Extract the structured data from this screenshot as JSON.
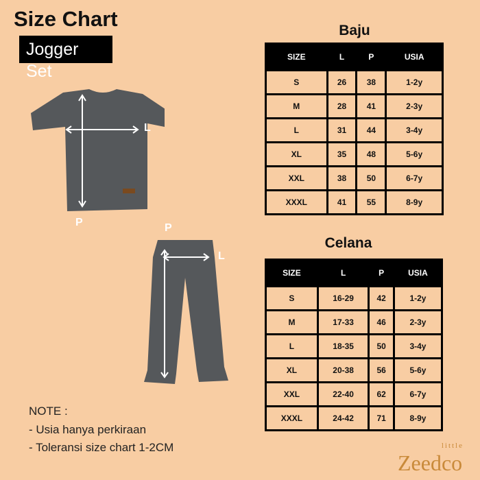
{
  "title": "Size Chart",
  "subtitle": "Jogger Set",
  "baju": {
    "title": "Baju",
    "headers": [
      "SIZE",
      "L",
      "P",
      "USIA"
    ],
    "rows": [
      [
        "S",
        "26",
        "38",
        "1-2y"
      ],
      [
        "M",
        "28",
        "41",
        "2-3y"
      ],
      [
        "L",
        "31",
        "44",
        "3-4y"
      ],
      [
        "XL",
        "35",
        "48",
        "5-6y"
      ],
      [
        "XXL",
        "38",
        "50",
        "6-7y"
      ],
      [
        "XXXL",
        "41",
        "55",
        "8-9y"
      ]
    ]
  },
  "celana": {
    "title": "Celana",
    "headers": [
      "SIZE",
      "L",
      "P",
      "USIA"
    ],
    "rows": [
      [
        "S",
        "16-29",
        "42",
        "1-2y"
      ],
      [
        "M",
        "17-33",
        "46",
        "2-3y"
      ],
      [
        "L",
        "18-35",
        "50",
        "3-4y"
      ],
      [
        "XL",
        "20-38",
        "56",
        "5-6y"
      ],
      [
        "XXL",
        "22-40",
        "62",
        "6-7y"
      ],
      [
        "XXXL",
        "24-42",
        "71",
        "8-9y"
      ]
    ]
  },
  "shirt_labels": {
    "width": "L",
    "length": "P"
  },
  "pants_labels": {
    "width": "L",
    "length": "P"
  },
  "note": {
    "heading": "NOTE :",
    "items": [
      "- Usia hanya perkiraan",
      "- Toleransi size chart 1-2CM"
    ]
  },
  "logo": {
    "small": "little",
    "main": "Zeedco"
  },
  "colors": {
    "background": "#f8cda3",
    "header": "#000000",
    "garment": "#55585b",
    "logo": "#c98a3a"
  }
}
